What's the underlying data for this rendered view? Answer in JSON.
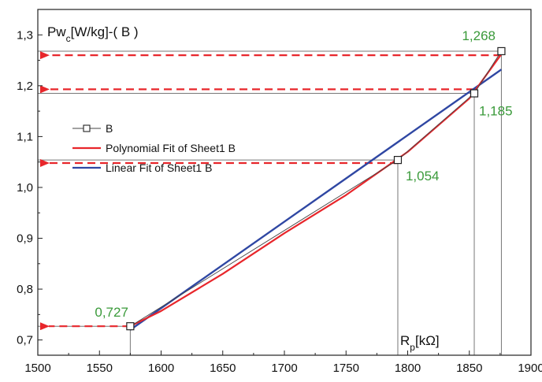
{
  "colors": {
    "data": "#444444",
    "polynomial": "#e8262b",
    "linear": "#2f47a3",
    "annotation": "#3a9a3a",
    "guide": "#777777",
    "arrow": "#e8262b"
  },
  "chart_data": {
    "type": "line",
    "title_parts": {
      "main": "Pw",
      "sub": "c",
      "rest": "[W/kg]-( B )"
    },
    "xlabel_parts": {
      "main": "R",
      "sub": "p",
      "rest": "[kΩ]"
    },
    "xlim": [
      1500,
      1900
    ],
    "ylim": [
      0.67,
      1.35
    ],
    "x_ticks": [
      1500,
      1550,
      1600,
      1650,
      1700,
      1750,
      1800,
      1850,
      1900
    ],
    "x_tick_labels": [
      "1500",
      "1550",
      "1600",
      "1650",
      "1700",
      "1750",
      "1800",
      "1850",
      "1900"
    ],
    "y_ticks": [
      0.7,
      0.8,
      0.9,
      1.0,
      1.1,
      1.2,
      1.3
    ],
    "y_tick_labels": [
      "0,7",
      "0,8",
      "0,9",
      "1,0",
      "1,1",
      "1,2",
      "1,3"
    ],
    "series": [
      {
        "name": "B",
        "x": [
          1575,
          1792,
          1854,
          1876
        ],
        "y": [
          0.727,
          1.054,
          1.185,
          1.268
        ]
      },
      {
        "name": "Polynomial Fit of Sheet1 B",
        "x": [
          1575,
          1600,
          1650,
          1700,
          1750,
          1800,
          1850,
          1876
        ],
        "y": [
          0.727,
          0.757,
          0.83,
          0.91,
          0.985,
          1.07,
          1.175,
          1.262
        ]
      },
      {
        "name": "Linear Fit of Sheet1 B",
        "x": [
          1575,
          1876
        ],
        "y": [
          0.72,
          1.232
        ]
      }
    ],
    "annotations": [
      {
        "text": "0,727",
        "x": 1575,
        "y": 0.727,
        "arrow_y": 0.727
      },
      {
        "text": "1,054",
        "x": 1792,
        "y": 1.054,
        "arrow_y": 1.048
      },
      {
        "text": "1,185",
        "x": 1854,
        "y": 1.185,
        "arrow_y": 1.193
      },
      {
        "text": "1,268",
        "x": 1876,
        "y": 1.268,
        "arrow_y": 1.26
      }
    ],
    "legend_position": "upper-left",
    "grid": false
  }
}
